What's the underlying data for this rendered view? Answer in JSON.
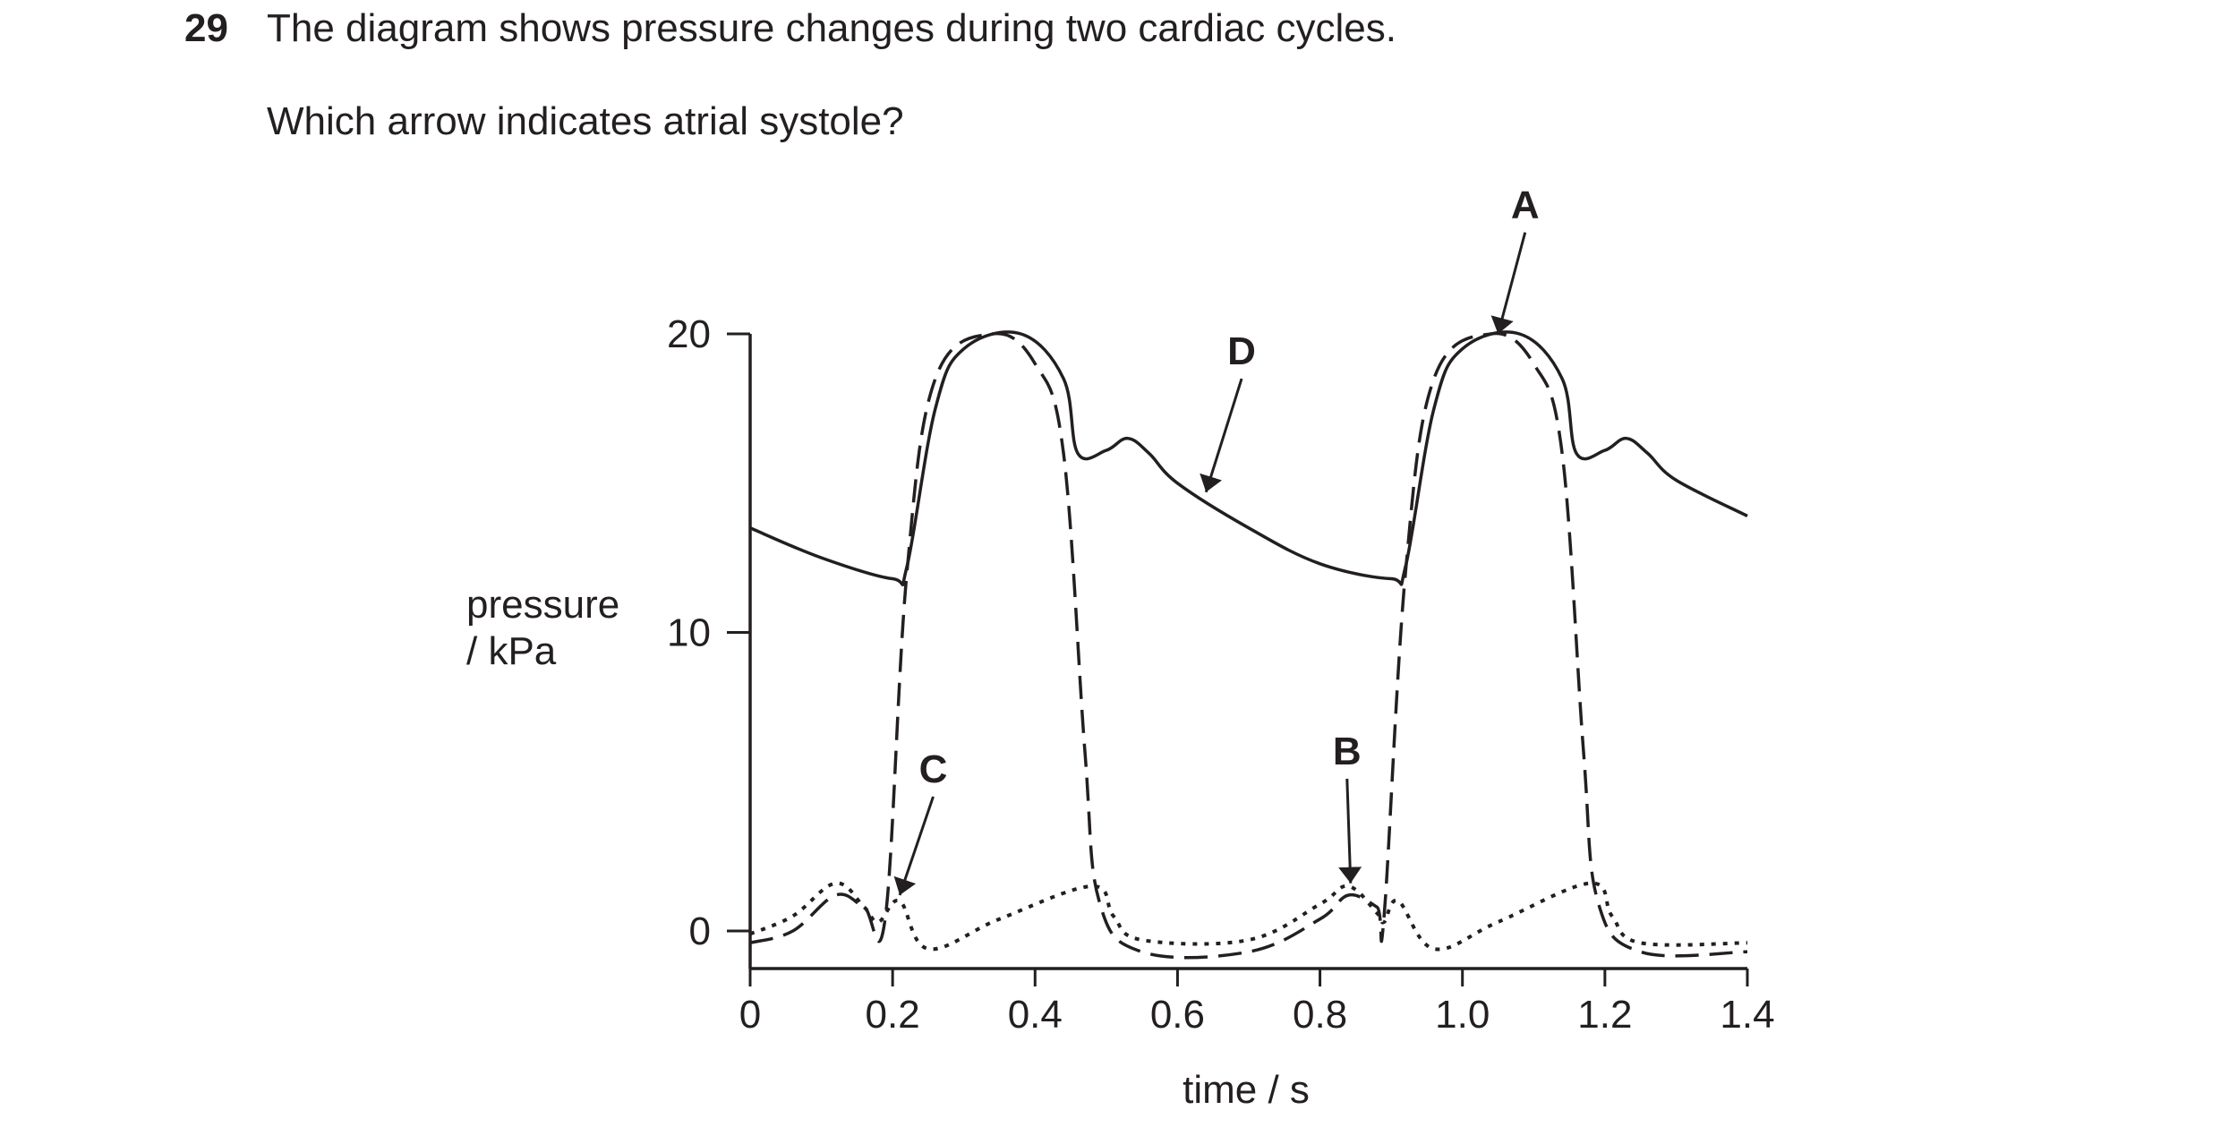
{
  "question": {
    "number": "29",
    "text": "The diagram shows pressure changes during two cardiac cycles.",
    "prompt": "Which arrow indicates atrial systole?"
  },
  "chart_data": {
    "type": "line",
    "xlabel": "time / s",
    "ylabel_line1": "pressure",
    "ylabel_line2": "/ kPa",
    "xlim": [
      0,
      1.4
    ],
    "ylim": [
      -1.3,
      20
    ],
    "x_ticks": [
      0,
      0.2,
      0.4,
      0.6,
      0.8,
      1.0,
      1.2,
      1.4
    ],
    "x_tick_labels": [
      "0",
      "0.2",
      "0.4",
      "0.6",
      "0.8",
      "1.0",
      "1.2",
      "1.4"
    ],
    "y_ticks": [
      0,
      10,
      20
    ],
    "y_tick_labels": [
      "0",
      "10",
      "20"
    ],
    "grid": false,
    "series": [
      {
        "line_style": "solid",
        "points": [
          [
            0,
            13.5
          ],
          [
            0.1,
            12.5
          ],
          [
            0.2,
            11.8
          ],
          [
            0.22,
            12.2
          ],
          [
            0.26,
            17.5
          ],
          [
            0.3,
            19.5
          ],
          [
            0.38,
            20
          ],
          [
            0.44,
            18.5
          ],
          [
            0.46,
            16
          ],
          [
            0.5,
            16.1
          ],
          [
            0.53,
            16.5
          ],
          [
            0.56,
            16
          ],
          [
            0.6,
            15
          ],
          [
            0.7,
            13.5
          ],
          [
            0.8,
            12.3
          ],
          [
            0.9,
            11.8
          ],
          [
            0.92,
            12.2
          ],
          [
            0.96,
            17.5
          ],
          [
            1.0,
            19.5
          ],
          [
            1.08,
            20
          ],
          [
            1.14,
            18.5
          ],
          [
            1.16,
            16
          ],
          [
            1.2,
            16.1
          ],
          [
            1.23,
            16.5
          ],
          [
            1.26,
            16
          ],
          [
            1.3,
            15.1
          ],
          [
            1.4,
            13.9
          ]
        ]
      },
      {
        "line_style": "dashed",
        "points": [
          [
            0,
            -0.4
          ],
          [
            0.06,
            0
          ],
          [
            0.12,
            1.2
          ],
          [
            0.16,
            0.8
          ],
          [
            0.19,
            0.5
          ],
          [
            0.22,
            12
          ],
          [
            0.26,
            18.5
          ],
          [
            0.34,
            20
          ],
          [
            0.4,
            19
          ],
          [
            0.44,
            16
          ],
          [
            0.47,
            6
          ],
          [
            0.49,
            1
          ],
          [
            0.55,
            -0.7
          ],
          [
            0.7,
            -0.7
          ],
          [
            0.8,
            0.4
          ],
          [
            0.84,
            1.2
          ],
          [
            0.88,
            0.8
          ],
          [
            0.89,
            0.5
          ],
          [
            0.92,
            12
          ],
          [
            0.96,
            18.5
          ],
          [
            1.04,
            20
          ],
          [
            1.1,
            19
          ],
          [
            1.14,
            16
          ],
          [
            1.17,
            6
          ],
          [
            1.19,
            1
          ],
          [
            1.25,
            -0.7
          ],
          [
            1.4,
            -0.7
          ]
        ]
      },
      {
        "line_style": "dotted",
        "points": [
          [
            0,
            -0.1
          ],
          [
            0.06,
            0.5
          ],
          [
            0.12,
            1.6
          ],
          [
            0.16,
            0.8
          ],
          [
            0.18,
            0.3
          ],
          [
            0.21,
            1
          ],
          [
            0.25,
            -0.6
          ],
          [
            0.35,
            0.4
          ],
          [
            0.48,
            1.5
          ],
          [
            0.51,
            0.5
          ],
          [
            0.55,
            -0.3
          ],
          [
            0.7,
            -0.3
          ],
          [
            0.8,
            0.9
          ],
          [
            0.84,
            1.5
          ],
          [
            0.88,
            0.6
          ],
          [
            0.89,
            0.3
          ],
          [
            0.91,
            1
          ],
          [
            0.96,
            -0.6
          ],
          [
            1.05,
            0.3
          ],
          [
            1.18,
            1.6
          ],
          [
            1.21,
            0.5
          ],
          [
            1.25,
            -0.4
          ],
          [
            1.4,
            -0.4
          ]
        ]
      }
    ],
    "annotations": [
      {
        "label": "A",
        "target": [
          1.05,
          20
        ],
        "from": [
          1.088,
          23.4
        ]
      },
      {
        "label": "B",
        "target": [
          0.843,
          1.6
        ],
        "from": [
          0.838,
          5.1
        ]
      },
      {
        "label": "C",
        "target": [
          0.21,
          1.2
        ],
        "from": [
          0.257,
          4.5
        ]
      },
      {
        "label": "D",
        "target": [
          0.64,
          14.7
        ],
        "from": [
          0.69,
          18.5
        ]
      }
    ]
  }
}
